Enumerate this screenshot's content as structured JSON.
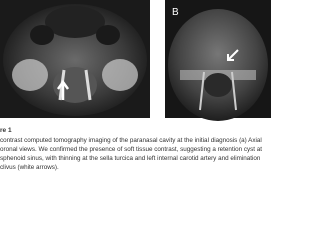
{
  "figure": {
    "panel_b_label": "B"
  },
  "caption": {
    "title": "re 1",
    "lines": [
      "contrast computed tomography imaging of the paranasal cavity at the initial diagnosis (a) Axial",
      "oronal views. We confirmed the presence of soft tissue contrast, suggesting a retention cyst at",
      "sphenoid sinus, with thinning at the sella turcica and left internal carotid artery and elimination",
      "clivus (white arrows)."
    ]
  }
}
